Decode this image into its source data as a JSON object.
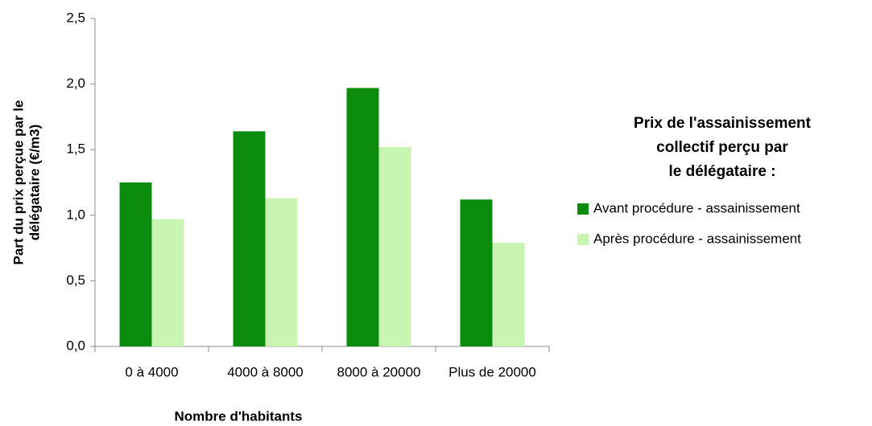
{
  "chart_data": {
    "type": "bar",
    "legend_title": [
      "Prix de l'assainissement",
      "collectif perçu par",
      "le délégataire :"
    ],
    "x_label": "Nombre d'habitants",
    "y_label": [
      "Part du prix perçue par le",
      "délégataire (€/m3)"
    ],
    "categories": [
      "0 à 4000",
      "4000 à 8000",
      "8000 à 20000",
      "Plus de 20000"
    ],
    "series": [
      {
        "name": "Avant procédure - assainissement",
        "color": "#0c8c0c",
        "values": [
          1.25,
          1.64,
          1.97,
          1.12
        ]
      },
      {
        "name": "Après procédure - assainissement",
        "color": "#c9f5b3",
        "values": [
          0.97,
          1.13,
          1.52,
          0.79
        ]
      }
    ],
    "ylim": [
      0,
      2.5
    ],
    "yticks": [
      {
        "value": 0,
        "label": "0,0"
      },
      {
        "value": 0.5,
        "label": "0,5"
      },
      {
        "value": 1,
        "label": "1,0"
      },
      {
        "value": 1.5,
        "label": "1,5"
      },
      {
        "value": 2,
        "label": "2,0"
      },
      {
        "value": 2.5,
        "label": "2,5"
      }
    ],
    "grid": false,
    "legend_position": "right"
  }
}
